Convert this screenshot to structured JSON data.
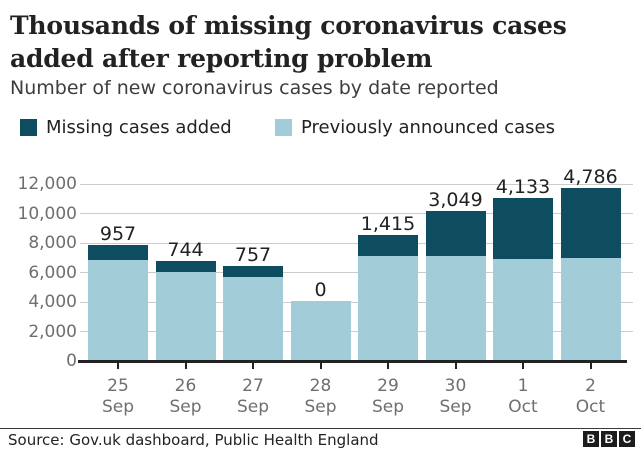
{
  "header": {
    "title_line1": "Thousands of missing coronavirus cases",
    "title_line2": "added after reporting problem",
    "subtitle": "Number of new coronavirus cases by date reported"
  },
  "legend": [
    {
      "label": "Missing cases added",
      "color": "#0e4d5f"
    },
    {
      "label": "Previously announced cases",
      "color": "#a3ccd9"
    }
  ],
  "chart_data": {
    "type": "bar",
    "stacked": true,
    "title": "Thousands of missing coronavirus cases added after reporting problem",
    "subtitle": "Number of new coronavirus cases by date reported",
    "categories": [
      "25 Sep",
      "26 Sep",
      "27 Sep",
      "28 Sep",
      "29 Sep",
      "30 Sep",
      "1 Oct",
      "2 Oct"
    ],
    "series": [
      {
        "name": "Previously announced cases",
        "color": "#a3ccd9",
        "values": [
          6874,
          6042,
          5693,
          4044,
          7143,
          7108,
          6914,
          6968
        ]
      },
      {
        "name": "Missing cases added",
        "color": "#0e4d5f",
        "values": [
          957,
          744,
          757,
          0,
          1415,
          3049,
          4133,
          4786
        ]
      }
    ],
    "bar_value_labels": [
      "957",
      "744",
      "757",
      "0",
      "1,415",
      "3,049",
      "4,133",
      "4,786"
    ],
    "ylim": [
      0,
      12000
    ],
    "yticks": [
      0,
      2000,
      4000,
      6000,
      8000,
      10000,
      12000
    ],
    "ytick_labels": [
      "0",
      "2,000",
      "4,000",
      "6,000",
      "8,000",
      "10,000",
      "12,000"
    ],
    "grid": true,
    "legend_position": "top"
  },
  "footer": {
    "source": "Source: Gov.uk dashboard, Public Health England",
    "logo_letters": [
      "B",
      "B",
      "C"
    ]
  },
  "colors": {
    "background": "#ffffff",
    "missing_cases": "#0e4d5f",
    "previous_cases": "#a3ccd9",
    "axis_text": "#6e6e73",
    "gridline": "#cccccc",
    "axis_line": "#222222",
    "text": "#222222"
  }
}
